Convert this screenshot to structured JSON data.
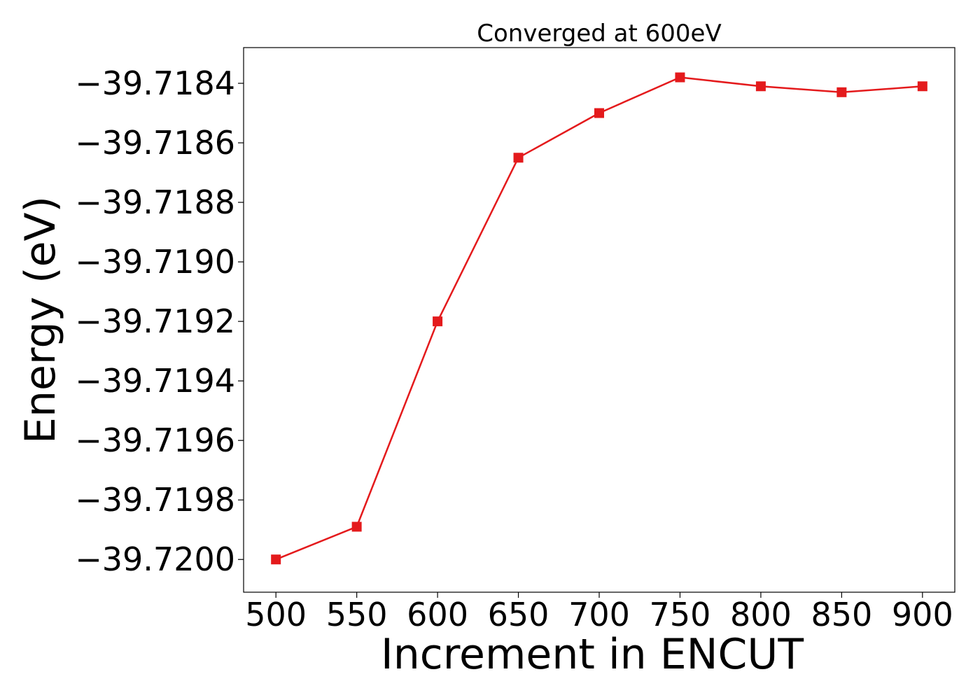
{
  "chart_data": {
    "type": "line",
    "title": "Converged at 600eV",
    "xlabel": "Increment in ENCUT",
    "ylabel": "Energy (eV)",
    "x": [
      500,
      550,
      600,
      650,
      700,
      750,
      800,
      850,
      900
    ],
    "series": [
      {
        "values": [
          -39.72,
          -39.71989,
          -39.7192,
          -39.71865,
          -39.7185,
          -39.71838,
          -39.71841,
          -39.71843,
          -39.71841
        ],
        "color": "#e41a1c",
        "marker": "square"
      }
    ],
    "xticks": [
      500,
      550,
      600,
      650,
      700,
      750,
      800,
      850,
      900
    ],
    "xtick_labels": [
      "500",
      "550",
      "600",
      "650",
      "700",
      "750",
      "800",
      "850",
      "900"
    ],
    "yticks": [
      -39.72,
      -39.7198,
      -39.7196,
      -39.7194,
      -39.7192,
      -39.719,
      -39.7188,
      -39.7186,
      -39.7184
    ],
    "ytick_labels": [
      "−39.7200",
      "−39.7198",
      "−39.7196",
      "−39.7194",
      "−39.7192",
      "−39.7190",
      "−39.7188",
      "−39.7186",
      "−39.7184"
    ],
    "xlim": [
      480,
      920
    ],
    "ylim": [
      -39.72011,
      -39.71828
    ],
    "grid": false,
    "legend": false
  }
}
